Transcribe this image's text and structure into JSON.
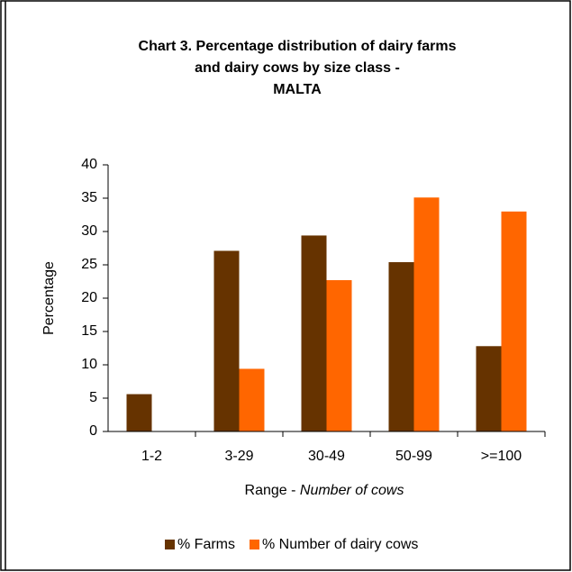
{
  "chart_data": {
    "type": "bar",
    "title": [
      "Chart 3.  Percentage distribution of dairy farms",
      "and dairy cows by size class -",
      "MALTA"
    ],
    "ylabel": "Percentage",
    "xlabel": [
      "Range - ",
      "Number of cows"
    ],
    "categories": [
      "1-2",
      "3-29",
      "30-49",
      "50-99",
      ">=100"
    ],
    "series": [
      {
        "name": "% Farms",
        "color": "#663300",
        "values": [
          5.6,
          27.1,
          29.4,
          25.4,
          12.8
        ]
      },
      {
        "name": "% Number of dairy cows",
        "color": "#ff6600",
        "values": [
          0,
          9.4,
          22.7,
          35.1,
          33.0
        ]
      }
    ],
    "ylim": [
      0,
      40
    ],
    "yticks": [
      0,
      5,
      10,
      15,
      20,
      25,
      30,
      35,
      40
    ],
    "legend": "bottom"
  }
}
